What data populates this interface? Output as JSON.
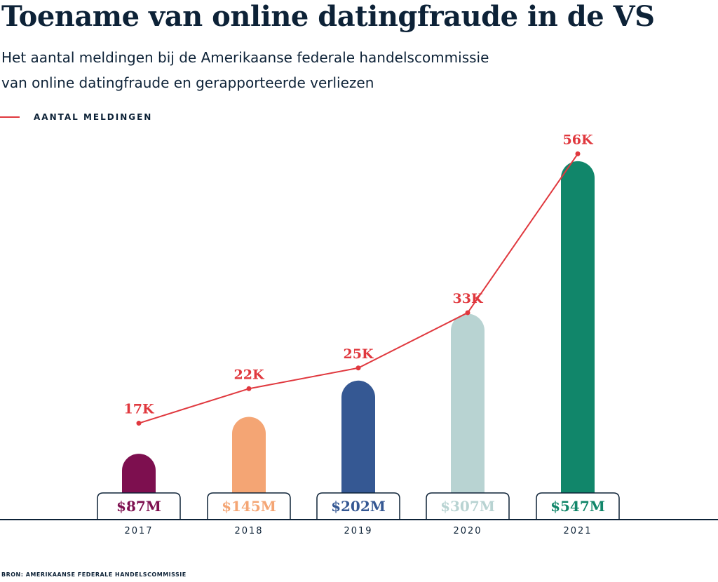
{
  "title": "Toename van online datingfraude in de VS",
  "subtitle_line1": "Het aantal meldingen bij de Amerikaanse federale handelscommissie",
  "subtitle_line2": "van online datingfraude en gerapporteerde verliezen",
  "source": "BRON: AMERIKAANSE FEDERALE HANDELSCOMMISSIE",
  "chart_data": {
    "type": "bar+line",
    "categories": [
      "2017",
      "2018",
      "2019",
      "2020",
      "2021"
    ],
    "bars": {
      "values": [
        87,
        145,
        202,
        307,
        547
      ],
      "labels": [
        "$87M",
        "$145M",
        "$202M",
        "$307M",
        "$547M"
      ],
      "colors": [
        "#7d0f4f",
        "#f4a574",
        "#355893",
        "#b8d3d2",
        "#11866a"
      ]
    },
    "line": {
      "name": "AANTAL MELDINGEN",
      "values": [
        17,
        22,
        25,
        33,
        56
      ],
      "labels": [
        "17K",
        "22K",
        "25K",
        "33K",
        "56K"
      ],
      "color": "#e0383e"
    },
    "grid": false,
    "legend": "top-left"
  }
}
